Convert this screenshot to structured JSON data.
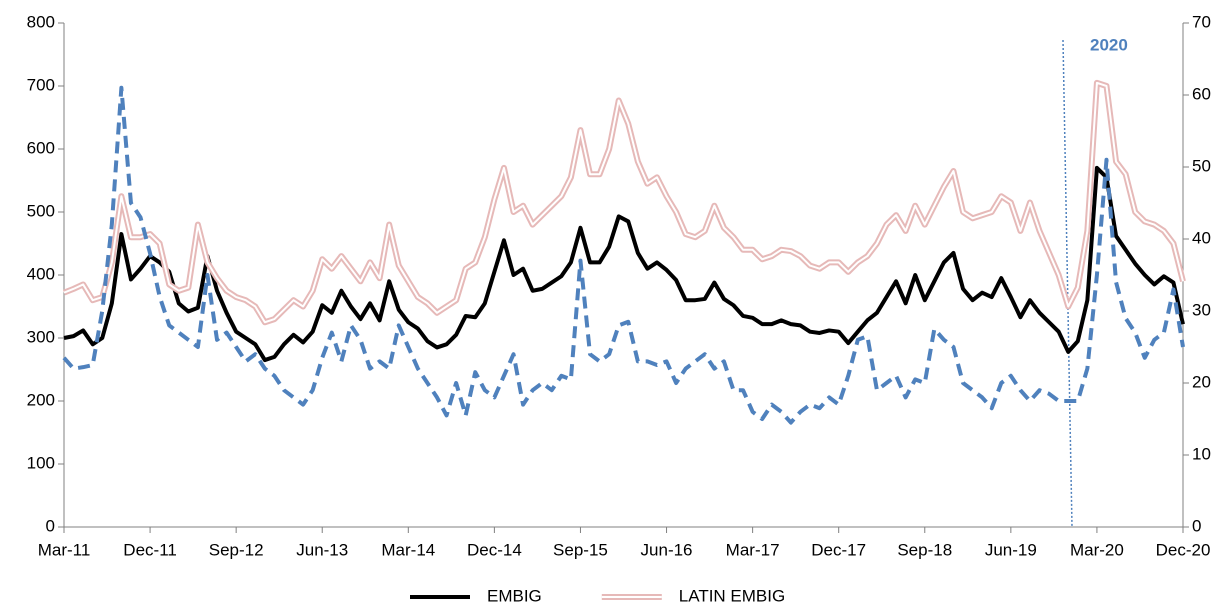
{
  "chart_data": {
    "type": "line",
    "categories": [
      "Mar-11",
      null,
      null,
      null,
      null,
      null,
      null,
      null,
      null,
      "Dec-11",
      null,
      null,
      null,
      null,
      null,
      null,
      null,
      null,
      "Sep-12",
      null,
      null,
      null,
      null,
      null,
      null,
      null,
      null,
      "Jun-13",
      null,
      null,
      null,
      null,
      null,
      null,
      null,
      null,
      "Mar-14",
      null,
      null,
      null,
      null,
      null,
      null,
      null,
      null,
      "Dec-14",
      null,
      null,
      null,
      null,
      null,
      null,
      null,
      null,
      "Sep-15",
      null,
      null,
      null,
      null,
      null,
      null,
      null,
      null,
      "Jun-16",
      null,
      null,
      null,
      null,
      null,
      null,
      null,
      null,
      "Mar-17",
      null,
      null,
      null,
      null,
      null,
      null,
      null,
      null,
      "Dec-17",
      null,
      null,
      null,
      null,
      null,
      null,
      null,
      null,
      "Sep-18",
      null,
      null,
      null,
      null,
      null,
      null,
      null,
      null,
      "Jun-19",
      null,
      null,
      null,
      null,
      null,
      null,
      null,
      null,
      "Mar-20",
      null,
      null,
      null,
      null,
      null,
      null,
      null,
      null,
      "Dec-20"
    ],
    "series": [
      {
        "name": "EMBIG",
        "color": "#000000",
        "line_style": "solid",
        "values": [
          300,
          303,
          312,
          290,
          300,
          355,
          465,
          393,
          410,
          430,
          420,
          405,
          355,
          342,
          348,
          430,
          375,
          340,
          310,
          300,
          290,
          265,
          270,
          290,
          305,
          293,
          310,
          352,
          340,
          375,
          350,
          330,
          355,
          328,
          390,
          345,
          325,
          315,
          295,
          285,
          290,
          305,
          335,
          333,
          355,
          405,
          455,
          400,
          410,
          375,
          378,
          388,
          398,
          420,
          475,
          420,
          420,
          445,
          493,
          485,
          435,
          410,
          420,
          408,
          392,
          360,
          360,
          362,
          388,
          362,
          352,
          335,
          332,
          322,
          322,
          328,
          322,
          320,
          310,
          308,
          312,
          310,
          292,
          310,
          328,
          340,
          365,
          390,
          355,
          400,
          360,
          390,
          420,
          435,
          378,
          360,
          372,
          365,
          395,
          365,
          333,
          360,
          340,
          325,
          310,
          278,
          295,
          360,
          570,
          555,
          462,
          440,
          418,
          400,
          385,
          398,
          388,
          322
        ]
      },
      {
        "name": "LATIN EMBIG",
        "color": "#e6b9b8",
        "line_style": "double",
        "values": [
          372,
          378,
          385,
          360,
          365,
          420,
          525,
          460,
          460,
          465,
          450,
          385,
          375,
          380,
          480,
          420,
          395,
          375,
          365,
          360,
          350,
          325,
          330,
          345,
          360,
          350,
          375,
          425,
          410,
          430,
          410,
          390,
          420,
          395,
          480,
          415,
          390,
          365,
          355,
          340,
          350,
          360,
          410,
          420,
          460,
          520,
          570,
          500,
          510,
          480,
          495,
          510,
          525,
          555,
          630,
          560,
          560,
          600,
          677,
          640,
          580,
          545,
          555,
          525,
          500,
          465,
          460,
          470,
          510,
          475,
          460,
          440,
          440,
          425,
          430,
          440,
          438,
          430,
          415,
          410,
          420,
          420,
          405,
          420,
          430,
          450,
          480,
          495,
          470,
          510,
          480,
          510,
          540,
          565,
          500,
          490,
          495,
          500,
          525,
          515,
          470,
          515,
          470,
          435,
          400,
          350,
          380,
          470,
          705,
          700,
          580,
          560,
          500,
          485,
          480,
          470,
          450,
          390
        ]
      },
      {
        "color": "#4f81bd",
        "line_style": "dashed",
        "axis": "y2",
        "values": [
          23.5,
          22,
          22.2,
          22.5,
          30,
          42,
          61,
          45,
          43,
          38,
          32,
          28,
          27,
          26,
          25,
          35,
          26,
          27,
          25,
          23,
          24,
          22,
          21,
          19,
          18,
          17,
          19,
          23.5,
          27,
          23,
          28,
          26,
          22,
          23,
          22,
          28,
          25,
          22,
          20,
          18,
          15.5,
          20,
          15.5,
          21.5,
          19,
          18,
          21,
          24,
          17,
          19,
          20,
          19,
          21,
          20.5,
          37,
          24,
          23,
          24,
          28,
          28.5,
          23,
          23,
          22.5,
          23,
          20,
          22,
          23,
          24,
          22,
          23,
          19,
          19,
          16,
          15,
          17,
          16,
          14.5,
          16,
          17,
          16.5,
          18,
          17,
          21,
          26,
          26.5,
          19,
          20,
          21,
          18,
          20.5,
          20,
          27.5,
          26,
          25,
          20,
          19,
          18,
          16.5,
          20,
          21,
          19,
          17.5,
          19,
          18.5,
          17.5,
          17.5,
          17.5,
          22,
          35,
          51,
          34,
          29,
          27,
          23.5,
          26,
          27,
          33,
          25
        ]
      }
    ],
    "annotation": "2020",
    "ylim": [
      0,
      800
    ],
    "yticks": [
      0,
      100,
      200,
      300,
      400,
      500,
      600,
      700,
      800
    ],
    "y2lim": [
      0,
      70
    ],
    "y2ticks": [
      0,
      10,
      20,
      30,
      40,
      50,
      60,
      70
    ],
    "grid": false,
    "legend": "bottom"
  }
}
